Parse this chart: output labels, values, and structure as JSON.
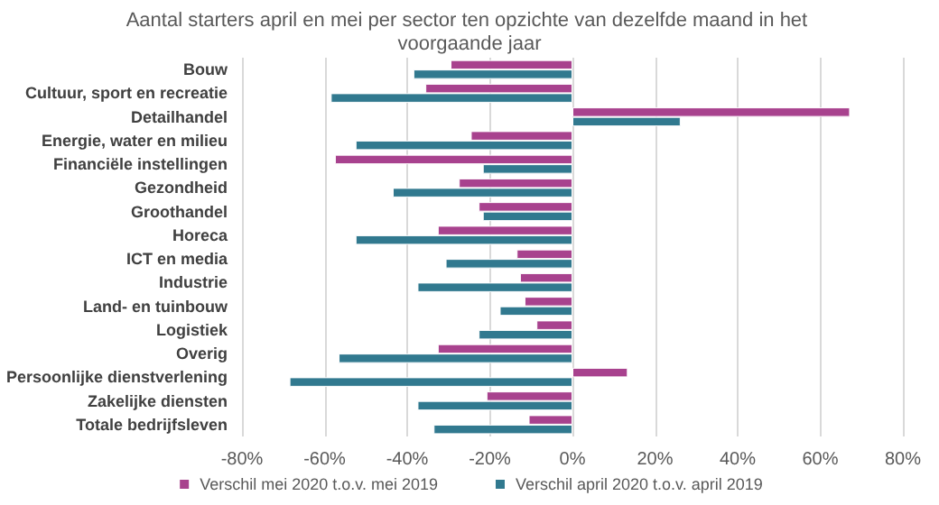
{
  "chart_data": {
    "type": "bar",
    "orientation": "horizontal",
    "title": "Aantal starters april en mei per sector ten opzichte van dezelfde maand in het voorgaande jaar",
    "categories": [
      "Bouw",
      "Cultuur, sport en recreatie",
      "Detailhandel",
      "Energie, water en milieu",
      "Financiële instellingen",
      "Gezondheid",
      "Groothandel",
      "Horeca",
      "ICT en media",
      "Industrie",
      "Land- en tuinbouw",
      "Logistiek",
      "Overig",
      "Persoonlijke dienstverlening",
      "Zakelijke diensten",
      "Totale bedrijfsleven"
    ],
    "series": [
      {
        "name": "Verschil mei 2020 t.o.v. mei 2019",
        "color": "#a8428e",
        "values": [
          -29.5,
          -35.6,
          67.2,
          -24.6,
          -57.5,
          -27.5,
          -22.7,
          -32.6,
          -13.5,
          -12.7,
          -11.6,
          -8.7,
          -32.6,
          13.4,
          -20.8,
          -10.6
        ]
      },
      {
        "name": "Verschil april 2020 t.o.v. april 2019",
        "color": "#31798f",
        "values": [
          -38.5,
          -58.5,
          26.2,
          -52.5,
          -21.7,
          -43.5,
          -21.7,
          -52.5,
          -30.7,
          -37.5,
          -17.6,
          -22.7,
          -56.6,
          -68.5,
          -37.5,
          -33.6
        ]
      }
    ],
    "xlim": [
      -80,
      80
    ],
    "xticks": [
      {
        "value": -80,
        "label": "-80%"
      },
      {
        "value": -60,
        "label": "-60%"
      },
      {
        "value": -40,
        "label": "-40%"
      },
      {
        "value": -20,
        "label": "-20%"
      },
      {
        "value": 0,
        "label": "0%"
      },
      {
        "value": 20,
        "label": "20%"
      },
      {
        "value": 40,
        "label": "40%"
      },
      {
        "value": 60,
        "label": "60%"
      },
      {
        "value": 80,
        "label": "80%"
      }
    ],
    "grid": "x",
    "legend": "bottom"
  }
}
